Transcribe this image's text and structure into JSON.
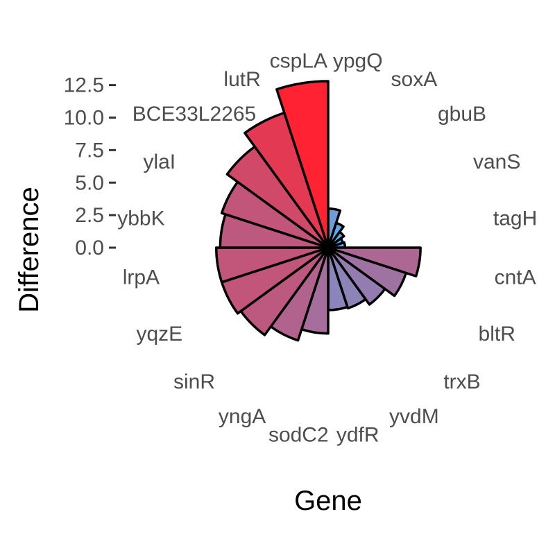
{
  "chart_data": {
    "type": "bar",
    "coord": "polar",
    "xlabel": "Gene",
    "ylabel": "Difference",
    "ylim": [
      0,
      12.5
    ],
    "yticks": [
      "0.0",
      "2.5",
      "5.0",
      "7.5",
      "10.0",
      "12.5"
    ],
    "ytick_values": [
      0,
      2.5,
      5,
      7.5,
      10,
      12.5
    ],
    "gradient": {
      "low": "#56B1F7",
      "high": "#FF2233"
    },
    "bar_outline": "#000000",
    "categories": [
      "ypgQ",
      "soxA",
      "gbuB",
      "vanS",
      "tagH",
      "cntA",
      "bltR",
      "trxB",
      "yvdM",
      "ydfR",
      "sodC2",
      "yngA",
      "sinR",
      "yqzE",
      "lrpA",
      "ybbK",
      "ylaI",
      "BCE33L2265",
      "lutR",
      "cspLA"
    ],
    "values": [
      3.0,
      2.0,
      1.5,
      1.2,
      1.3,
      7.1,
      6.3,
      5.4,
      4.9,
      4.8,
      6.6,
      7.5,
      8.3,
      8.6,
      8.6,
      8.3,
      8.6,
      9.6,
      10.9,
      12.8
    ]
  }
}
